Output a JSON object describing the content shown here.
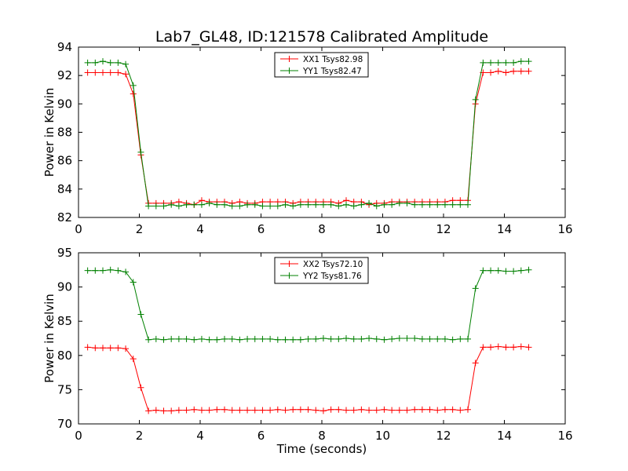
{
  "title": "Lab7_GL48, ID:121578 Calibrated Amplitude",
  "chart_data": [
    {
      "type": "line",
      "ylabel": "Power in Kelvin",
      "xlabel": "",
      "xlim": [
        0,
        16
      ],
      "ylim": [
        82,
        94
      ],
      "xticks": [
        0,
        2,
        4,
        6,
        8,
        10,
        12,
        14,
        16
      ],
      "yticks": [
        82,
        84,
        86,
        88,
        90,
        92,
        94
      ],
      "legend_position": "top-center",
      "series": [
        {
          "name": "XX1 Tsys82.98",
          "color": "#ff0000",
          "x": [
            0.3,
            0.55,
            0.8,
            1.05,
            1.3,
            1.55,
            1.8,
            2.05,
            2.3,
            2.55,
            2.8,
            3.05,
            3.3,
            3.55,
            3.8,
            4.05,
            4.3,
            4.55,
            4.8,
            5.05,
            5.3,
            5.55,
            5.8,
            6.05,
            6.3,
            6.55,
            6.8,
            7.05,
            7.3,
            7.55,
            7.8,
            8.05,
            8.3,
            8.55,
            8.8,
            9.05,
            9.3,
            9.55,
            9.8,
            10.05,
            10.3,
            10.55,
            10.8,
            11.05,
            11.3,
            11.55,
            11.8,
            12.05,
            12.3,
            12.55,
            12.8,
            13.05,
            13.3,
            13.55,
            13.8,
            14.05,
            14.3,
            14.55,
            14.8
          ],
          "values": [
            92.2,
            92.2,
            92.2,
            92.2,
            92.2,
            92.1,
            90.7,
            86.4,
            83.0,
            83.0,
            83.0,
            83.0,
            83.1,
            83.0,
            82.9,
            83.2,
            83.1,
            83.1,
            83.1,
            83.0,
            83.1,
            83.0,
            83.0,
            83.1,
            83.1,
            83.1,
            83.1,
            83.0,
            83.1,
            83.1,
            83.1,
            83.1,
            83.1,
            83.0,
            83.2,
            83.1,
            83.1,
            82.9,
            83.0,
            83.0,
            83.1,
            83.1,
            83.1,
            83.1,
            83.1,
            83.1,
            83.1,
            83.1,
            83.2,
            83.2,
            83.2,
            90.0,
            92.2,
            92.2,
            92.3,
            92.2,
            92.3,
            92.3,
            92.3
          ]
        },
        {
          "name": "YY1 Tsys82.47",
          "color": "#008000",
          "x": [
            0.3,
            0.55,
            0.8,
            1.05,
            1.3,
            1.55,
            1.8,
            2.05,
            2.3,
            2.55,
            2.8,
            3.05,
            3.3,
            3.55,
            3.8,
            4.05,
            4.3,
            4.55,
            4.8,
            5.05,
            5.3,
            5.55,
            5.8,
            6.05,
            6.3,
            6.55,
            6.8,
            7.05,
            7.3,
            7.55,
            7.8,
            8.05,
            8.3,
            8.55,
            8.8,
            9.05,
            9.3,
            9.55,
            9.8,
            10.05,
            10.3,
            10.55,
            10.8,
            11.05,
            11.3,
            11.55,
            11.8,
            12.05,
            12.3,
            12.55,
            12.8,
            13.05,
            13.3,
            13.55,
            13.8,
            14.05,
            14.3,
            14.55,
            14.8
          ],
          "values": [
            92.9,
            92.9,
            93.0,
            92.9,
            92.9,
            92.8,
            91.3,
            86.6,
            82.8,
            82.8,
            82.8,
            82.9,
            82.8,
            82.9,
            82.9,
            82.9,
            83.0,
            82.9,
            82.9,
            82.8,
            82.8,
            82.9,
            82.9,
            82.8,
            82.8,
            82.8,
            82.9,
            82.8,
            82.9,
            82.9,
            82.9,
            82.9,
            82.9,
            82.8,
            82.9,
            82.8,
            82.9,
            83.0,
            82.8,
            82.9,
            82.9,
            83.0,
            83.0,
            82.9,
            82.9,
            82.9,
            82.9,
            82.9,
            82.9,
            82.9,
            82.9,
            90.3,
            92.9,
            92.9,
            92.9,
            92.9,
            92.9,
            93.0,
            93.0
          ]
        }
      ]
    },
    {
      "type": "line",
      "ylabel": "Power in Kelvin",
      "xlabel": "Time (seconds)",
      "xlim": [
        0,
        16
      ],
      "ylim": [
        70,
        95
      ],
      "xticks": [
        0,
        2,
        4,
        6,
        8,
        10,
        12,
        14,
        16
      ],
      "yticks": [
        70,
        75,
        80,
        85,
        90,
        95
      ],
      "legend_position": "top-center",
      "series": [
        {
          "name": "XX2 Tsys72.10",
          "color": "#ff0000",
          "x": [
            0.3,
            0.55,
            0.8,
            1.05,
            1.3,
            1.55,
            1.8,
            2.05,
            2.3,
            2.55,
            2.8,
            3.05,
            3.3,
            3.55,
            3.8,
            4.05,
            4.3,
            4.55,
            4.8,
            5.05,
            5.3,
            5.55,
            5.8,
            6.05,
            6.3,
            6.55,
            6.8,
            7.05,
            7.3,
            7.55,
            7.8,
            8.05,
            8.3,
            8.55,
            8.8,
            9.05,
            9.3,
            9.55,
            9.8,
            10.05,
            10.3,
            10.55,
            10.8,
            11.05,
            11.3,
            11.55,
            11.8,
            12.05,
            12.3,
            12.55,
            12.8,
            13.05,
            13.3,
            13.55,
            13.8,
            14.05,
            14.3,
            14.55,
            14.8
          ],
          "values": [
            81.2,
            81.1,
            81.1,
            81.1,
            81.1,
            81.0,
            79.5,
            75.3,
            71.9,
            72.0,
            71.9,
            71.9,
            72.0,
            72.0,
            72.1,
            72.0,
            72.0,
            72.1,
            72.1,
            72.0,
            72.0,
            72.0,
            72.0,
            72.0,
            72.0,
            72.1,
            72.0,
            72.1,
            72.1,
            72.1,
            72.0,
            71.9,
            72.1,
            72.1,
            72.0,
            72.0,
            72.1,
            72.0,
            72.0,
            72.1,
            72.0,
            72.0,
            72.0,
            72.1,
            72.1,
            72.1,
            72.0,
            72.1,
            72.1,
            72.0,
            72.1,
            78.9,
            81.2,
            81.2,
            81.3,
            81.2,
            81.2,
            81.3,
            81.2
          ]
        },
        {
          "name": "YY2 Tsys81.76",
          "color": "#008000",
          "x": [
            0.3,
            0.55,
            0.8,
            1.05,
            1.3,
            1.55,
            1.8,
            2.05,
            2.3,
            2.55,
            2.8,
            3.05,
            3.3,
            3.55,
            3.8,
            4.05,
            4.3,
            4.55,
            4.8,
            5.05,
            5.3,
            5.55,
            5.8,
            6.05,
            6.3,
            6.55,
            6.8,
            7.05,
            7.3,
            7.55,
            7.8,
            8.05,
            8.3,
            8.55,
            8.8,
            9.05,
            9.3,
            9.55,
            9.8,
            10.05,
            10.3,
            10.55,
            10.8,
            11.05,
            11.3,
            11.55,
            11.8,
            12.05,
            12.3,
            12.55,
            12.8,
            13.05,
            13.3,
            13.55,
            13.8,
            14.05,
            14.3,
            14.55,
            14.8
          ],
          "values": [
            92.4,
            92.4,
            92.4,
            92.5,
            92.4,
            92.2,
            90.7,
            86.0,
            82.3,
            82.4,
            82.3,
            82.4,
            82.4,
            82.4,
            82.3,
            82.4,
            82.3,
            82.3,
            82.4,
            82.4,
            82.3,
            82.4,
            82.4,
            82.4,
            82.4,
            82.3,
            82.3,
            82.3,
            82.3,
            82.4,
            82.4,
            82.5,
            82.4,
            82.4,
            82.5,
            82.4,
            82.4,
            82.5,
            82.4,
            82.3,
            82.4,
            82.5,
            82.5,
            82.5,
            82.4,
            82.4,
            82.4,
            82.4,
            82.3,
            82.4,
            82.4,
            89.8,
            92.4,
            92.4,
            92.4,
            92.3,
            92.3,
            92.4,
            92.5
          ]
        }
      ]
    }
  ]
}
